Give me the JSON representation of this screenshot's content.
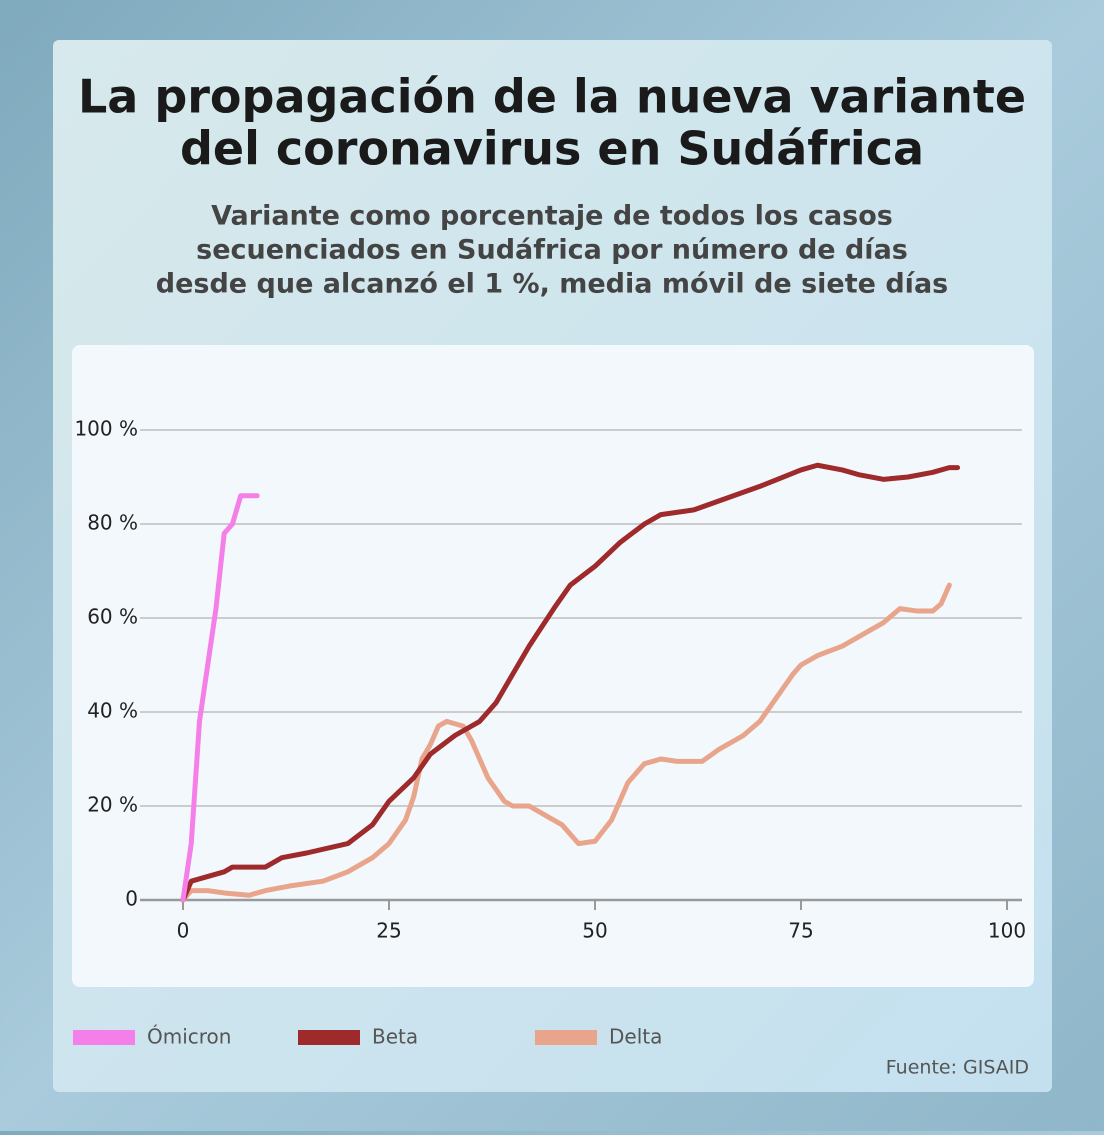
{
  "chart_data": {
    "type": "line",
    "title": [
      "La propagación de la nueva variante",
      "del coronavirus en Sudáfrica"
    ],
    "subtitle": [
      "Variante como porcentaje de todos los casos",
      "secuenciados en Sudáfrica por número de días",
      "desde que alcanzó el 1 %, media móvil de siete días"
    ],
    "source": "Fuente: GISAID",
    "xlim": [
      0,
      100
    ],
    "xticks": [
      0,
      25,
      50,
      75,
      100
    ],
    "ylim": [
      0,
      100
    ],
    "yticks": [
      0,
      {
        "value": 20,
        "label": "20 %"
      },
      {
        "value": 40,
        "label": "40 %"
      },
      {
        "value": 60,
        "label": "60 %"
      },
      {
        "value": 80,
        "label": "80 %"
      },
      {
        "value": 100,
        "label": "100 %"
      }
    ],
    "grid": true,
    "series": [
      {
        "name": "Ómicron",
        "color": "#f47fe8",
        "x": [
          0,
          1,
          2,
          3,
          4,
          5,
          6,
          7,
          8,
          9
        ],
        "values": [
          0,
          12,
          38,
          50,
          62,
          78,
          80,
          86,
          86,
          86
        ]
      },
      {
        "name": "Beta",
        "color": "#9e2a2b",
        "x": [
          0,
          1,
          5,
          6,
          10,
          12,
          15,
          20,
          23,
          25,
          28,
          30,
          33,
          36,
          38,
          40,
          42,
          45,
          47,
          50,
          53,
          56,
          58,
          62,
          66,
          70,
          75,
          77,
          80,
          82,
          85,
          88,
          91,
          93,
          94
        ],
        "values": [
          0,
          4,
          6,
          7,
          7,
          9,
          10,
          12,
          16,
          21,
          26,
          31,
          35,
          38,
          42,
          48,
          54,
          62,
          67,
          71,
          76,
          80,
          82,
          83,
          85.5,
          88,
          91.5,
          92.5,
          91.5,
          90.5,
          89.5,
          90,
          91,
          92,
          92
        ]
      },
      {
        "name": "Delta",
        "color": "#e8a58c",
        "x": [
          0,
          1,
          3,
          5,
          8,
          10,
          13,
          17,
          20,
          23,
          25,
          27,
          28,
          29,
          30,
          31,
          32,
          34,
          35,
          37,
          39,
          40,
          42,
          44,
          46,
          48,
          50,
          52,
          54,
          56,
          58,
          60,
          63,
          65,
          68,
          70,
          72,
          74,
          75,
          77,
          80,
          83,
          85,
          87,
          89,
          91,
          92,
          93
        ],
        "values": [
          0,
          2,
          2,
          1.5,
          1,
          2,
          3,
          4,
          6,
          9,
          12,
          17,
          22,
          30,
          33,
          37,
          38,
          37,
          34,
          26,
          21,
          20,
          20,
          18,
          16,
          12,
          12.5,
          17,
          25,
          29,
          30,
          29.5,
          29.5,
          32,
          35,
          38,
          43,
          48,
          50,
          52,
          54,
          57,
          59,
          62,
          61.5,
          61.5,
          63,
          67
        ]
      }
    ]
  }
}
